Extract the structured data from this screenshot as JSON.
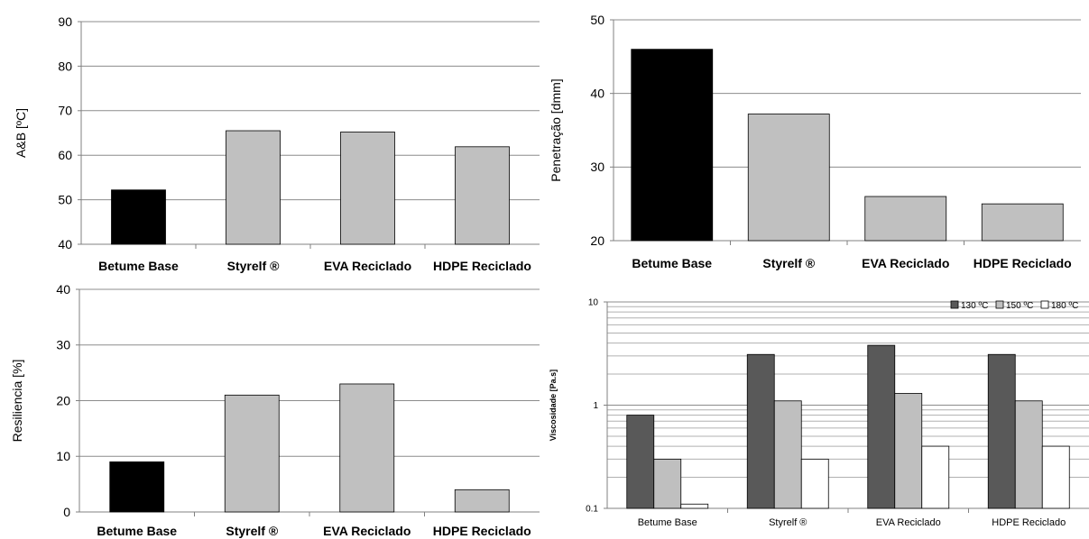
{
  "chart_data": [
    {
      "type": "bar",
      "categories": [
        "Betume Base",
        "Styrelf ®",
        "EVA Reciclado",
        "HDPE Reciclado"
      ],
      "values": [
        52.2,
        65.5,
        65.2,
        61.9
      ],
      "bar_colors": [
        "#000000",
        "#c0c0c0",
        "#c0c0c0",
        "#c0c0c0"
      ],
      "xlabel": "",
      "ylabel": "A&B [ºC]",
      "ylim": [
        40,
        90
      ],
      "yticks": [
        40,
        50,
        60,
        70,
        80,
        90
      ],
      "grid": true
    },
    {
      "type": "bar",
      "categories": [
        "Betume Base",
        "Styrelf ®",
        "EVA Reciclado",
        "HDPE Reciclado"
      ],
      "values": [
        46,
        37.2,
        26,
        25
      ],
      "bar_colors": [
        "#000000",
        "#c0c0c0",
        "#c0c0c0",
        "#c0c0c0"
      ],
      "xlabel": "",
      "ylabel": "Penetração [dmm]",
      "ylim": [
        20,
        50
      ],
      "yticks": [
        20,
        30,
        40,
        50
      ],
      "grid": true
    },
    {
      "type": "bar",
      "categories": [
        "Betume Base",
        "Styrelf ®",
        "EVA Reciclado",
        "HDPE Reciclado"
      ],
      "values": [
        9,
        21,
        23,
        4
      ],
      "bar_colors": [
        "#000000",
        "#c0c0c0",
        "#c0c0c0",
        "#c0c0c0"
      ],
      "xlabel": "",
      "ylabel": "Resiliencia [%]",
      "ylim": [
        0,
        40
      ],
      "yticks": [
        0,
        10,
        20,
        30,
        40
      ],
      "grid": true
    },
    {
      "type": "bar",
      "categories": [
        "Betume Base",
        "Styrelf ®",
        "EVA Reciclado",
        "HDPE Reciclado"
      ],
      "series": [
        {
          "name": "130 ºC",
          "values": [
            0.8,
            3.1,
            3.8,
            3.1
          ],
          "color": "#595959"
        },
        {
          "name": "150 ºC",
          "values": [
            0.3,
            1.1,
            1.3,
            1.1
          ],
          "color": "#bfbfbf"
        },
        {
          "name": "180 ºC",
          "values": [
            0.11,
            0.3,
            0.4,
            0.4
          ],
          "color": "#ffffff"
        }
      ],
      "xlabel": "",
      "ylabel": "Viscosidade  [Pa.s]",
      "scale": "log",
      "ylim": [
        0.1,
        10
      ],
      "yticks": [
        "0.1",
        "1",
        "10"
      ],
      "legend": "top-right",
      "grid": true
    }
  ]
}
